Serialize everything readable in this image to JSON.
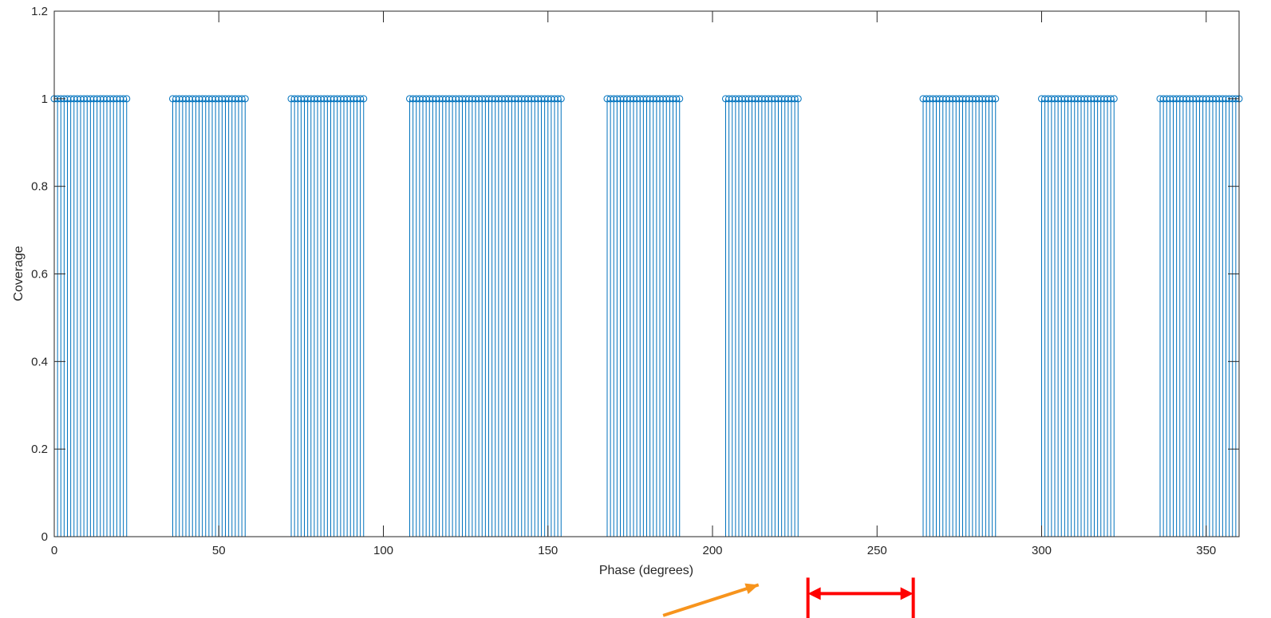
{
  "chart_data": {
    "type": "stem",
    "xlabel": "Phase (degrees)",
    "ylabel": "Coverage",
    "xlim": [
      0,
      360
    ],
    "ylim": [
      0,
      1.2
    ],
    "xticks": [
      0,
      50,
      100,
      150,
      200,
      250,
      300,
      350
    ],
    "yticks": [
      0,
      0.2,
      0.4,
      0.6,
      0.8,
      1,
      1.2
    ],
    "xtick_labels": [
      "0",
      "50",
      "100",
      "150",
      "200",
      "250",
      "300",
      "350"
    ],
    "ytick_labels": [
      "0",
      "0.2",
      "0.4",
      "0.6",
      "0.8",
      "1",
      "1.2"
    ],
    "grid": false,
    "series": [
      {
        "color": "#0072BD",
        "x": [
          0,
          1,
          2,
          3,
          4,
          5,
          6,
          7,
          8,
          9,
          10,
          11,
          12,
          13,
          14,
          15,
          16,
          17,
          18,
          19,
          20,
          21,
          22,
          36,
          37,
          38,
          39,
          40,
          41,
          42,
          43,
          44,
          45,
          46,
          47,
          48,
          49,
          50,
          51,
          52,
          53,
          54,
          55,
          56,
          57,
          58,
          72,
          73,
          74,
          75,
          76,
          77,
          78,
          79,
          80,
          81,
          82,
          83,
          84,
          85,
          86,
          87,
          88,
          89,
          90,
          91,
          92,
          93,
          94,
          108,
          109,
          110,
          111,
          112,
          113,
          114,
          115,
          116,
          117,
          118,
          119,
          120,
          121,
          122,
          123,
          124,
          125,
          126,
          127,
          128,
          129,
          130,
          131,
          132,
          133,
          134,
          135,
          136,
          137,
          138,
          139,
          140,
          141,
          142,
          143,
          144,
          145,
          146,
          147,
          148,
          149,
          150,
          151,
          152,
          153,
          154,
          168,
          169,
          170,
          171,
          172,
          173,
          174,
          175,
          176,
          177,
          178,
          179,
          180,
          181,
          182,
          183,
          184,
          185,
          186,
          187,
          188,
          189,
          190,
          204,
          205,
          206,
          207,
          208,
          209,
          210,
          211,
          212,
          213,
          214,
          215,
          216,
          217,
          218,
          219,
          220,
          221,
          222,
          223,
          224,
          225,
          226,
          264,
          265,
          266,
          267,
          268,
          269,
          270,
          271,
          272,
          273,
          274,
          275,
          276,
          277,
          278,
          279,
          280,
          281,
          282,
          283,
          284,
          285,
          286,
          300,
          301,
          302,
          303,
          304,
          305,
          306,
          307,
          308,
          309,
          310,
          311,
          312,
          313,
          314,
          315,
          316,
          317,
          318,
          319,
          320,
          321,
          322,
          336,
          337,
          338,
          339,
          340,
          341,
          342,
          343,
          344,
          345,
          346,
          347,
          348,
          349,
          350,
          351,
          352,
          353,
          354,
          355,
          356,
          357,
          358,
          359,
          360
        ],
        "y_all": 1
      }
    ],
    "annotations": [
      {
        "type": "arrow",
        "color": "#F7941D",
        "from": [
          185,
          -0.18
        ],
        "to": [
          214,
          -0.11
        ]
      },
      {
        "type": "double-arrow",
        "color": "#FF0000",
        "from": [
          229,
          -0.13
        ],
        "to": [
          261,
          -0.13
        ]
      }
    ]
  }
}
